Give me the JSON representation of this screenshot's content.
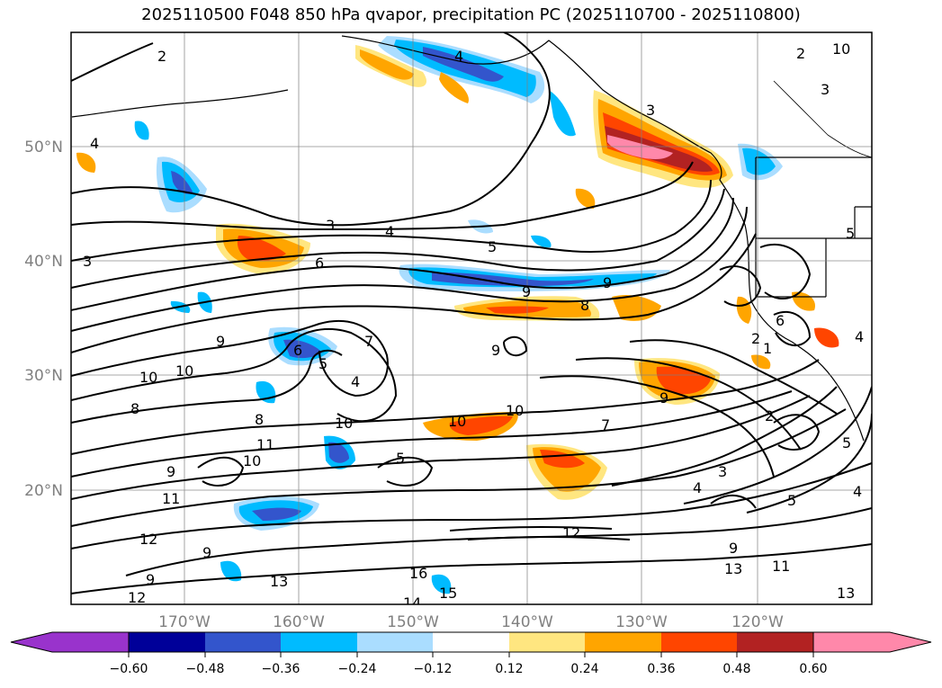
{
  "title": "2025110500 F048 850 hPa qvapor, precipitation PC (2025110700 - 2025110800)",
  "map": {
    "lat_labels": [
      "50°N",
      "40°N",
      "30°N",
      "20°N"
    ],
    "lon_labels": [
      "170°W",
      "160°W",
      "150°W",
      "140°W",
      "130°W",
      "120°W"
    ],
    "contour_labels": [
      "2",
      "10",
      "3",
      "2",
      "4",
      "3",
      "4",
      "5",
      "6",
      "3",
      "9",
      "9",
      "8",
      "7",
      "9",
      "6",
      "5",
      "4",
      "10",
      "10",
      "9",
      "8",
      "8",
      "11",
      "10",
      "9",
      "10",
      "10",
      "7",
      "9",
      "5",
      "11",
      "10",
      "12",
      "12",
      "9",
      "9",
      "3",
      "4",
      "5",
      "9",
      "13",
      "11",
      "13",
      "16",
      "15",
      "14",
      "12",
      "13",
      "4",
      "1",
      "2",
      "5",
      "2",
      "4",
      "5",
      "6",
      "4",
      "3"
    ],
    "precip_sign_legend": "none"
  },
  "colorbar": {
    "ticks": [
      "−0.60",
      "−0.48",
      "−0.36",
      "−0.24",
      "−0.12",
      "0.12",
      "0.24",
      "0.36",
      "0.48",
      "0.60"
    ],
    "colors": [
      "#9933cc",
      "#000099",
      "#3355cc",
      "#00bbff",
      "#aaddff",
      "#ffffff",
      "#ffe680",
      "#ffa500",
      "#ff4500",
      "#b22222",
      "#ff88aa",
      "#ff88aa"
    ]
  }
}
